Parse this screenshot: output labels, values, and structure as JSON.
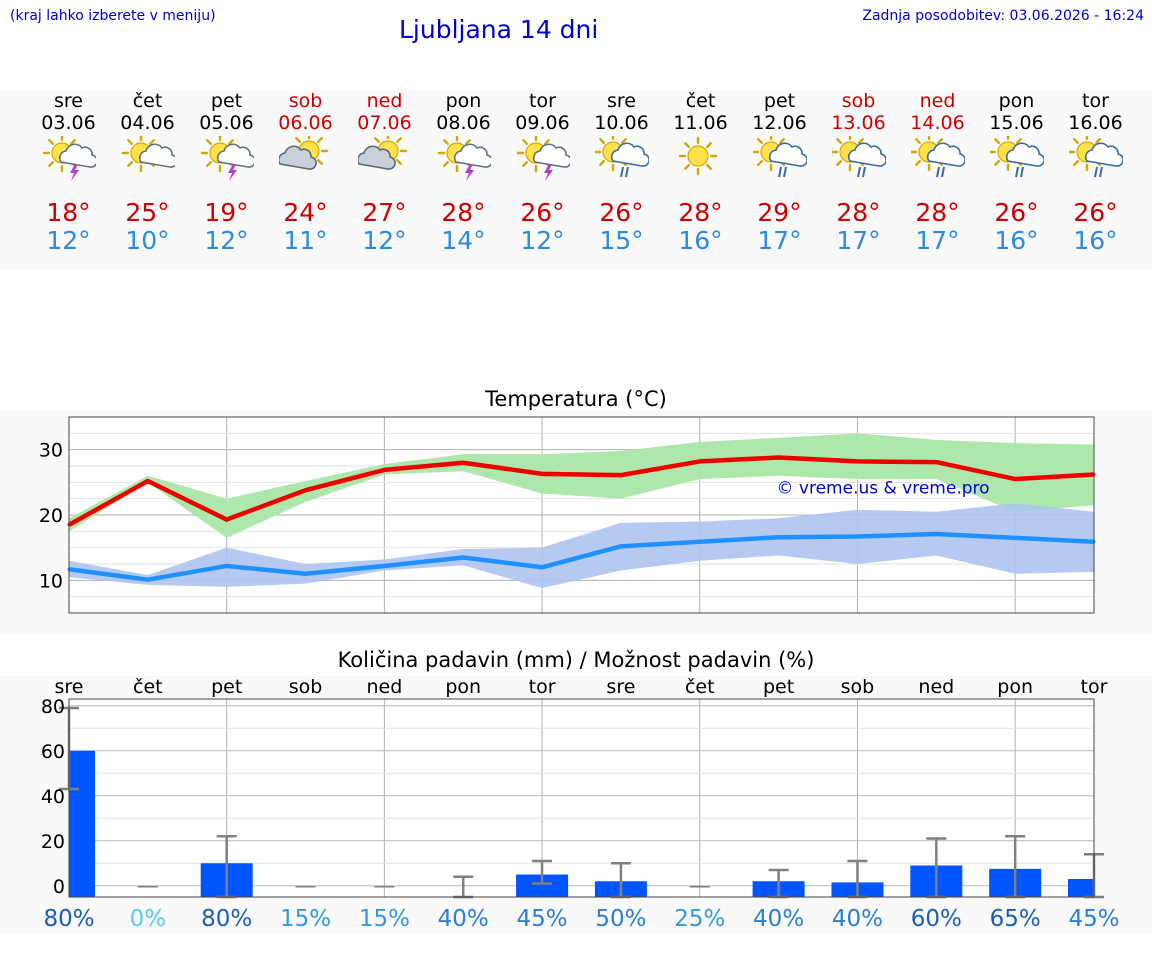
{
  "header": {
    "hint": "(kraj lahko izberete v meniju)",
    "title": "Ljubljana 14 dni",
    "updated": "Zadnja posodobitev: 03.06.2026 - 16:24"
  },
  "days": [
    {
      "name": "sre",
      "date": "03.06",
      "weekend": false,
      "icon": "sun-thunder-icon",
      "tmax": "18°",
      "tmin": "12°"
    },
    {
      "name": "čet",
      "date": "04.06",
      "weekend": false,
      "icon": "sun-cloud-icon",
      "tmax": "25°",
      "tmin": "10°"
    },
    {
      "name": "pet",
      "date": "05.06",
      "weekend": false,
      "icon": "sun-thunder-icon",
      "tmax": "19°",
      "tmin": "12°"
    },
    {
      "name": "sob",
      "date": "06.06",
      "weekend": true,
      "icon": "cloud-sun-icon",
      "tmax": "24°",
      "tmin": "11°"
    },
    {
      "name": "ned",
      "date": "07.06",
      "weekend": true,
      "icon": "cloud-sun-icon",
      "tmax": "27°",
      "tmin": "12°"
    },
    {
      "name": "pon",
      "date": "08.06",
      "weekend": false,
      "icon": "sun-thunder-icon",
      "tmax": "28°",
      "tmin": "14°"
    },
    {
      "name": "tor",
      "date": "09.06",
      "weekend": false,
      "icon": "sun-thunder-icon",
      "tmax": "26°",
      "tmin": "12°"
    },
    {
      "name": "sre",
      "date": "10.06",
      "weekend": false,
      "icon": "sun-rain-icon",
      "tmax": "26°",
      "tmin": "15°"
    },
    {
      "name": "čet",
      "date": "11.06",
      "weekend": false,
      "icon": "sun-icon",
      "tmax": "28°",
      "tmin": "16°"
    },
    {
      "name": "pet",
      "date": "12.06",
      "weekend": false,
      "icon": "sun-rain-icon",
      "tmax": "29°",
      "tmin": "17°"
    },
    {
      "name": "sob",
      "date": "13.06",
      "weekend": true,
      "icon": "sun-rain-icon",
      "tmax": "28°",
      "tmin": "17°"
    },
    {
      "name": "ned",
      "date": "14.06",
      "weekend": true,
      "icon": "sun-rain-icon",
      "tmax": "28°",
      "tmin": "17°"
    },
    {
      "name": "pon",
      "date": "15.06",
      "weekend": false,
      "icon": "sun-rain-icon",
      "tmax": "26°",
      "tmin": "16°"
    },
    {
      "name": "tor",
      "date": "16.06",
      "weekend": false,
      "icon": "sun-rain-icon",
      "tmax": "26°",
      "tmin": "16°"
    }
  ],
  "colors": {
    "max_line": "#ee0000",
    "max_band": "#aae6a8",
    "min_line": "#2190ff",
    "min_band": "#aec4f0",
    "bar": "#0055ff",
    "error": "#808080",
    "weekend": "#cc0000",
    "link": "#0000cc"
  },
  "chart_data": [
    {
      "type": "line",
      "title": "Temperatura (°C)",
      "watermark": "© vreme.us & vreme.pro",
      "x": [
        "03.06",
        "04.06",
        "05.06",
        "06.06",
        "07.06",
        "08.06",
        "09.06",
        "10.06",
        "11.06",
        "12.06",
        "13.06",
        "14.06",
        "15.06",
        "16.06"
      ],
      "ylim": [
        5,
        35
      ],
      "yticks": [
        10,
        20,
        30
      ],
      "grid": true,
      "series": [
        {
          "values": [
            18.5,
            25.2,
            19.3,
            23.8,
            26.9,
            28.0,
            26.3,
            26.1,
            28.2,
            28.8,
            28.2,
            28.1,
            25.5,
            26.2
          ],
          "band_low": [
            17.5,
            25.0,
            16.5,
            22.0,
            26.2,
            26.7,
            23.3,
            22.5,
            25.5,
            26.0,
            25.5,
            25.5,
            20.5,
            21.5
          ],
          "band_high": [
            19.5,
            26.0,
            22.5,
            25.2,
            27.8,
            29.3,
            29.3,
            29.8,
            31.2,
            31.8,
            32.5,
            31.5,
            31.0,
            30.8
          ]
        },
        {
          "values": [
            11.7,
            10.1,
            12.2,
            11.0,
            12.2,
            13.5,
            12.0,
            15.2,
            15.9,
            16.6,
            16.7,
            17.1,
            16.5,
            15.9
          ],
          "band_low": [
            10.5,
            9.3,
            9.0,
            9.5,
            11.5,
            12.3,
            8.8,
            11.5,
            13.0,
            13.8,
            12.5,
            13.8,
            11.0,
            11.3
          ],
          "band_high": [
            13.0,
            10.8,
            15.0,
            12.5,
            13.2,
            14.8,
            15.0,
            18.8,
            19.0,
            19.5,
            20.8,
            20.5,
            21.8,
            20.5
          ]
        }
      ]
    },
    {
      "type": "bar",
      "title": "Količina padavin (mm) / Možnost padavin (%)",
      "categories": [
        "sre",
        "čet",
        "pet",
        "sob",
        "ned",
        "pon",
        "tor",
        "sre",
        "čet",
        "pet",
        "sob",
        "ned",
        "pon",
        "tor"
      ],
      "ylim": [
        -5,
        83
      ],
      "yticks": [
        0,
        20,
        40,
        60,
        80
      ],
      "values": [
        60,
        0,
        10,
        0,
        0,
        0,
        5,
        2,
        0,
        2,
        1.5,
        9,
        7.5,
        3
      ],
      "error_high": [
        79,
        0,
        22,
        0,
        0,
        4,
        11,
        10,
        0,
        7,
        11,
        21,
        22,
        14
      ],
      "error_low": [
        43,
        0,
        0,
        0,
        0,
        0,
        1,
        0,
        0,
        0,
        0,
        0,
        0,
        0
      ],
      "probability": [
        "80%",
        "0%",
        "80%",
        "15%",
        "15%",
        "40%",
        "45%",
        "50%",
        "25%",
        "40%",
        "40%",
        "60%",
        "65%",
        "45%"
      ],
      "probability_colors": [
        "#1a5fb4",
        "#55ccee",
        "#1a5fb4",
        "#3399dd",
        "#3399dd",
        "#2b7fd0",
        "#2b7fd0",
        "#2b7fd0",
        "#3399dd",
        "#2b7fd0",
        "#2b7fd0",
        "#1a5fb4",
        "#1a5fb4",
        "#2b7fd0"
      ]
    }
  ]
}
